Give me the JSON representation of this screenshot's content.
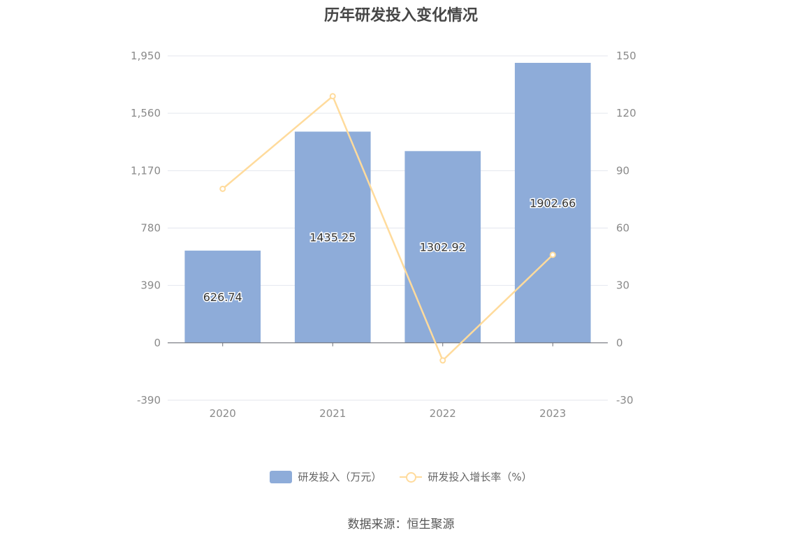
{
  "title": "历年研发投入变化情况",
  "source": "数据来源：恒生聚源",
  "chart_data": {
    "type": "bar",
    "title": "历年研发投入变化情况",
    "categories": [
      "2020",
      "2021",
      "2022",
      "2023"
    ],
    "series": [
      {
        "name": "研发投入（万元）",
        "type": "bar",
        "axis": "left",
        "values": [
          626.74,
          1435.25,
          1302.92,
          1902.66
        ],
        "labels": [
          "626.74",
          "1435.25",
          "1302.92",
          "1902.66"
        ],
        "color": "#8eacd9"
      },
      {
        "name": "研发投入增长率（%）",
        "type": "line",
        "axis": "right",
        "values": [
          80.5,
          128.9,
          -9.2,
          46.0
        ],
        "color": "#ffdb9c"
      }
    ],
    "left_axis": {
      "ylim": [
        -390,
        1950
      ],
      "ticks": [
        -390,
        0,
        390,
        780,
        1170,
        1560,
        1950
      ],
      "tick_labels": [
        "-390",
        "0",
        "390",
        "780",
        "1,170",
        "1,560",
        "1,950"
      ]
    },
    "right_axis": {
      "ylim": [
        -30,
        150
      ],
      "ticks": [
        -30,
        0,
        30,
        60,
        90,
        120,
        150
      ],
      "tick_labels": [
        "-30",
        "0",
        "30",
        "60",
        "90",
        "120",
        "150"
      ]
    },
    "grid": true,
    "legend": "bottom"
  }
}
